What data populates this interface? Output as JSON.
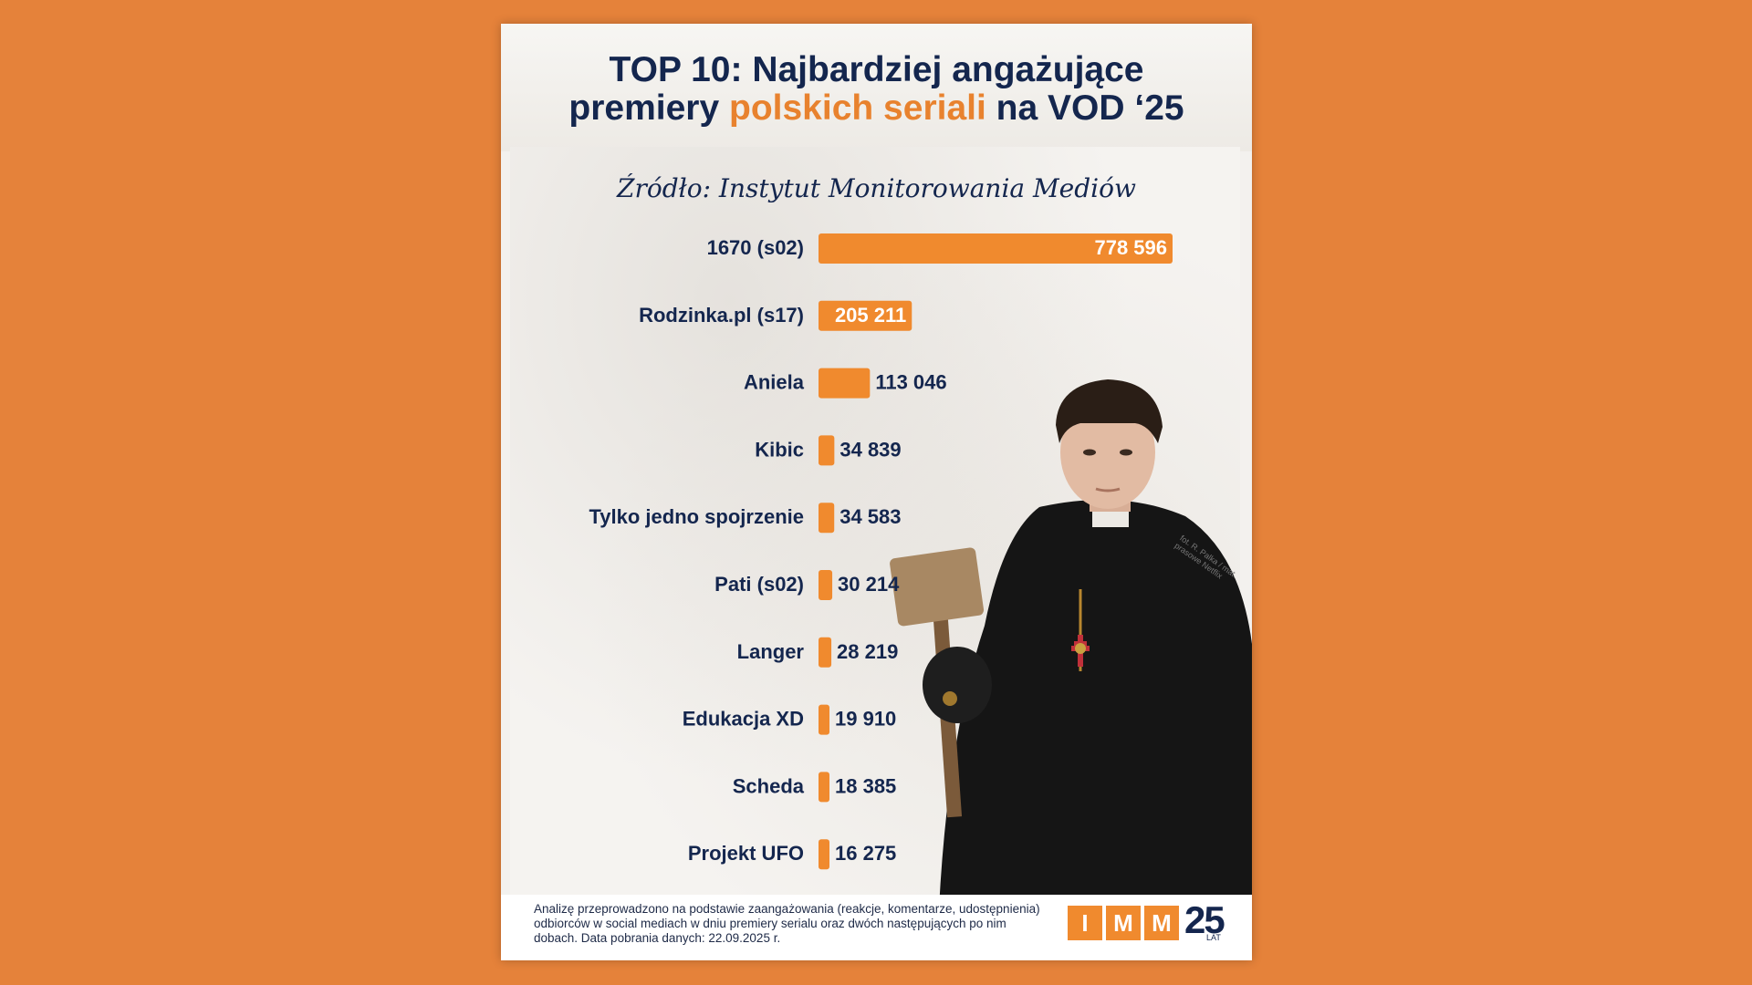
{
  "title": {
    "part1": "TOP 10: Najbardziej angażujące",
    "part2_pre": "premiery ",
    "part2_accent": "polskich seriali",
    "part2_post": " na VOD ‘25"
  },
  "source": "Źródło: Instytut Monitorowania Mediów",
  "colors": {
    "background": "#E5823A",
    "bar": "#F08A2E",
    "text_dark": "#14264E",
    "accent": "#E8822E"
  },
  "chart_data": {
    "type": "bar",
    "orientation": "horizontal",
    "categories": [
      "1670 (s02)",
      "Rodzinka.pl (s17)",
      "Aniela",
      "Kibic",
      "Tylko jedno spojrzenie",
      "Pati (s02)",
      "Langer",
      "Edukacja XD",
      "Scheda",
      "Projekt UFO"
    ],
    "values": [
      778596,
      205211,
      113046,
      34839,
      34583,
      30214,
      28219,
      19910,
      18385,
      16275
    ],
    "value_labels": [
      "778 596",
      "205 211",
      "113 046",
      "34 839",
      "34 583",
      "30 214",
      "28 219",
      "19 910",
      "18 385",
      "16 275"
    ],
    "xlim": [
      0,
      778596
    ],
    "grid": false,
    "legend": "none"
  },
  "footnote": "Analizę przeprowadzono na podstawie zaangażowania (reakcje, komentarze, udostępnienia) odbiorców w social mediach w dniu premiery serialu oraz dwóch następujących po nim dobach. Data pobrania danych: 22.09.2025 r.",
  "logo": {
    "letters": [
      "I",
      "M",
      "M"
    ],
    "number": "25",
    "suffix": "LAT"
  },
  "photo_credit": "fot. R. Palka / mat. prasowe Netflix"
}
